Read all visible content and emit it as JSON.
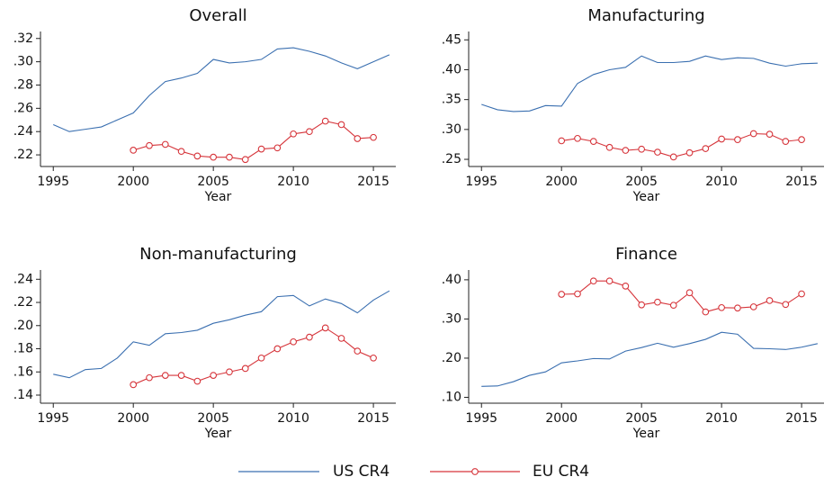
{
  "chart_data": [
    {
      "type": "line",
      "title": "Overall",
      "xlabel": "Year",
      "x": [
        1995,
        1996,
        1997,
        1998,
        1999,
        2000,
        2001,
        2002,
        2003,
        2004,
        2005,
        2006,
        2007,
        2008,
        2009,
        2010,
        2011,
        2012,
        2013,
        2014,
        2015,
        2016
      ],
      "series": [
        {
          "name": "US CR4",
          "color": "#3a6fb0",
          "values": [
            0.246,
            0.24,
            0.242,
            0.244,
            0.25,
            0.256,
            0.271,
            0.283,
            0.286,
            0.29,
            0.302,
            0.299,
            0.3,
            0.302,
            0.311,
            0.312,
            0.309,
            0.305,
            0.299,
            0.294,
            0.3,
            0.306
          ]
        },
        {
          "name": "EU CR4",
          "color": "#d6353b",
          "marker": "circle",
          "values": [
            null,
            null,
            null,
            null,
            null,
            0.224,
            0.228,
            0.229,
            0.223,
            0.219,
            0.218,
            0.218,
            0.216,
            0.225,
            0.226,
            0.238,
            0.24,
            0.249,
            0.246,
            0.234,
            0.235,
            null
          ]
        }
      ],
      "xlim": [
        1994.2,
        2016.4
      ],
      "xticks": [
        1995,
        2000,
        2005,
        2010,
        2015
      ],
      "ylim": [
        0.21,
        0.326
      ],
      "yticks": [
        {
          "value": 0.22,
          "label": ".22"
        },
        {
          "value": 0.24,
          "label": ".24"
        },
        {
          "value": 0.26,
          "label": ".26"
        },
        {
          "value": 0.28,
          "label": ".28"
        },
        {
          "value": 0.3,
          "label": ".30"
        },
        {
          "value": 0.32,
          "label": ".32"
        }
      ]
    },
    {
      "type": "line",
      "title": "Manufacturing",
      "xlabel": "Year",
      "x": [
        1995,
        1996,
        1997,
        1998,
        1999,
        2000,
        2001,
        2002,
        2003,
        2004,
        2005,
        2006,
        2007,
        2008,
        2009,
        2010,
        2011,
        2012,
        2013,
        2014,
        2015,
        2016
      ],
      "series": [
        {
          "name": "US CR4",
          "color": "#3a6fb0",
          "values": [
            0.342,
            0.333,
            0.33,
            0.331,
            0.34,
            0.339,
            0.377,
            0.392,
            0.4,
            0.404,
            0.423,
            0.412,
            0.412,
            0.414,
            0.423,
            0.417,
            0.42,
            0.419,
            0.411,
            0.406,
            0.41,
            0.411
          ]
        },
        {
          "name": "EU CR4",
          "color": "#d6353b",
          "marker": "circle",
          "values": [
            null,
            null,
            null,
            null,
            null,
            0.281,
            0.285,
            0.28,
            0.27,
            0.265,
            0.267,
            0.262,
            0.254,
            0.261,
            0.268,
            0.284,
            0.283,
            0.293,
            0.292,
            0.28,
            0.283,
            null
          ]
        }
      ],
      "xlim": [
        1994.2,
        2016.4
      ],
      "xticks": [
        1995,
        2000,
        2005,
        2010,
        2015
      ],
      "ylim": [
        0.238,
        0.464
      ],
      "yticks": [
        {
          "value": 0.25,
          "label": ".25"
        },
        {
          "value": 0.3,
          "label": ".30"
        },
        {
          "value": 0.35,
          "label": ".35"
        },
        {
          "value": 0.4,
          "label": ".40"
        },
        {
          "value": 0.45,
          "label": ".45"
        }
      ]
    },
    {
      "type": "line",
      "title": "Non-manufacturing",
      "xlabel": "Year",
      "x": [
        1995,
        1996,
        1997,
        1998,
        1999,
        2000,
        2001,
        2002,
        2003,
        2004,
        2005,
        2006,
        2007,
        2008,
        2009,
        2010,
        2011,
        2012,
        2013,
        2014,
        2015,
        2016
      ],
      "series": [
        {
          "name": "US CR4",
          "color": "#3a6fb0",
          "values": [
            0.158,
            0.155,
            0.162,
            0.163,
            0.172,
            0.186,
            0.183,
            0.193,
            0.194,
            0.196,
            0.202,
            0.205,
            0.209,
            0.212,
            0.225,
            0.226,
            0.217,
            0.223,
            0.219,
            0.211,
            0.222,
            0.23
          ]
        },
        {
          "name": "EU CR4",
          "color": "#d6353b",
          "marker": "circle",
          "values": [
            null,
            null,
            null,
            null,
            null,
            0.149,
            0.155,
            0.157,
            0.157,
            0.152,
            0.157,
            0.16,
            0.163,
            0.172,
            0.18,
            0.186,
            0.19,
            0.198,
            0.189,
            0.178,
            0.172,
            null
          ]
        }
      ],
      "xlim": [
        1994.2,
        2016.4
      ],
      "xticks": [
        1995,
        2000,
        2005,
        2010,
        2015
      ],
      "ylim": [
        0.133,
        0.248
      ],
      "yticks": [
        {
          "value": 0.14,
          "label": ".14"
        },
        {
          "value": 0.16,
          "label": ".16"
        },
        {
          "value": 0.18,
          "label": ".18"
        },
        {
          "value": 0.2,
          "label": ".20"
        },
        {
          "value": 0.22,
          "label": ".22"
        },
        {
          "value": 0.24,
          "label": ".24"
        }
      ]
    },
    {
      "type": "line",
      "title": "Finance",
      "xlabel": "Year",
      "x": [
        1995,
        1996,
        1997,
        1998,
        1999,
        2000,
        2001,
        2002,
        2003,
        2004,
        2005,
        2006,
        2007,
        2008,
        2009,
        2010,
        2011,
        2012,
        2013,
        2014,
        2015,
        2016
      ],
      "series": [
        {
          "name": "US CR4",
          "color": "#3a6fb0",
          "values": [
            0.128,
            0.129,
            0.14,
            0.156,
            0.165,
            0.188,
            0.193,
            0.199,
            0.198,
            0.218,
            0.227,
            0.238,
            0.228,
            0.237,
            0.248,
            0.266,
            0.261,
            0.225,
            0.224,
            0.222,
            0.228,
            0.237
          ]
        },
        {
          "name": "EU CR4",
          "color": "#d6353b",
          "marker": "circle",
          "values": [
            null,
            null,
            null,
            null,
            null,
            0.363,
            0.364,
            0.397,
            0.397,
            0.384,
            0.336,
            0.343,
            0.335,
            0.367,
            0.318,
            0.329,
            0.328,
            0.331,
            0.347,
            0.337,
            0.364,
            null
          ]
        }
      ],
      "xlim": [
        1994.2,
        2016.4
      ],
      "xticks": [
        1995,
        2000,
        2005,
        2010,
        2015
      ],
      "ylim": [
        0.085,
        0.425
      ],
      "yticks": [
        {
          "value": 0.1,
          "label": ".10"
        },
        {
          "value": 0.2,
          "label": ".20"
        },
        {
          "value": 0.3,
          "label": ".30"
        },
        {
          "value": 0.4,
          "label": ".40"
        }
      ]
    }
  ]
}
